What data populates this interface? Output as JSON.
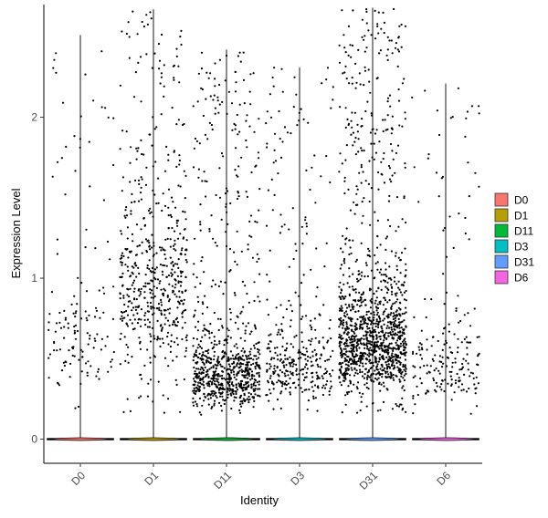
{
  "chart_data": {
    "type": "violin",
    "xlabel": "Identity",
    "ylabel": "Expression Level",
    "categories": [
      "D0",
      "D1",
      "D11",
      "D3",
      "D31",
      "D6"
    ],
    "ylim": [
      -0.15,
      2.7
    ],
    "yticks": [
      0,
      1,
      2
    ],
    "x_tick_rotation": 45,
    "jitter_points": true,
    "grid": false,
    "legend": {
      "position": "right",
      "entries": [
        "D0",
        "D1",
        "D11",
        "D3",
        "D31",
        "D6"
      ]
    },
    "series": [
      {
        "name": "D0",
        "color": "#F8766D",
        "max": 2.51,
        "zero_fraction": 0.85,
        "points": 140,
        "median_nonzero": 0.62
      },
      {
        "name": "D1",
        "color": "#B79F00",
        "max": 2.67,
        "zero_fraction": 0.55,
        "points": 560,
        "median_nonzero": 0.95
      },
      {
        "name": "D11",
        "color": "#00BA38",
        "max": 2.42,
        "zero_fraction": 0.5,
        "points": 820,
        "median_nonzero": 0.4
      },
      {
        "name": "D3",
        "color": "#00BFC4",
        "max": 2.31,
        "zero_fraction": 0.7,
        "points": 360,
        "median_nonzero": 0.45
      },
      {
        "name": "D31",
        "color": "#619CFF",
        "max": 2.68,
        "zero_fraction": 0.35,
        "points": 1300,
        "median_nonzero": 0.6
      },
      {
        "name": "D6",
        "color": "#F564E3",
        "max": 2.21,
        "zero_fraction": 0.8,
        "points": 200,
        "median_nonzero": 0.45
      }
    ]
  }
}
